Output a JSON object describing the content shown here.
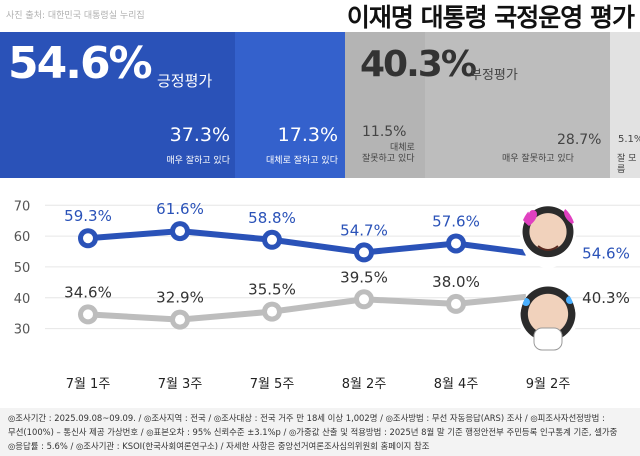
{
  "header": {
    "credit": "사진 출처: 대한민국 대통령실 누리집",
    "title": "이재명 대통령 국정운영 평가"
  },
  "summary": {
    "positive": {
      "value": "54.6%",
      "label": "긍정평가"
    },
    "negative": {
      "value": "40.3%",
      "label": "부정평가"
    },
    "breakdown": [
      {
        "value": "37.3%",
        "label": "매우 잘하고 있다"
      },
      {
        "value": "17.3%",
        "label": "대체로 잘하고 있다"
      },
      {
        "value": "11.5%",
        "label_line1": "대체로",
        "label_line2": "잘못하고 있다"
      },
      {
        "value": "28.7%",
        "label": "매우 잘못하고 있다"
      },
      {
        "value": "5.1%",
        "label": "잘 모름"
      }
    ]
  },
  "colors": {
    "positive": "#2a52b8",
    "positive_light": "#3461cc",
    "negative_line": "#bdbdbd",
    "negative_band": "#b4b4b4"
  },
  "chart_data": {
    "type": "line",
    "categories": [
      "7월 1주",
      "7월 3주",
      "7월 5주",
      "8월 2주",
      "8월 4주",
      "9월 2주"
    ],
    "series": [
      {
        "name": "긍정평가",
        "values": [
          59.3,
          61.6,
          58.8,
          54.7,
          57.6,
          54.6
        ],
        "labels": [
          "59.3%",
          "61.6%",
          "58.8%",
          "54.7%",
          "57.6%",
          "54.6%"
        ]
      },
      {
        "name": "부정평가",
        "values": [
          34.6,
          32.9,
          35.5,
          39.5,
          38.0,
          40.3
        ],
        "labels": [
          "34.6%",
          "32.9%",
          "35.5%",
          "39.5%",
          "38.0%",
          "40.3%"
        ]
      }
    ],
    "yticks": [
      "30",
      "40",
      "50",
      "60",
      "70"
    ],
    "ylim": [
      25,
      73
    ],
    "grid": true
  },
  "footer": {
    "line1": "◎조사기간 : 2025.09.08~09.09. / ◎조사지역 : 전국 / ◎조사대상 : 전국 거주 만 18세 이상 1,002명 / ◎조사방법 : 무선 자동응답(ARS) 조사 / ◎피조사자선정방법 :",
    "line2": "무선(100%) – 통신사 제공 가상번호 / ◎표본오차 : 95% 신뢰수준 ±3.1%p / ◎가중값 산출 및 적용방법 : 2025년 8월 말 기준 행정안전부 주민등록 인구통계 기준, 셀가중",
    "line3": "◎응답률 : 5.6% / ◎조사기관 : KSOI(한국사회여론연구소) / 자세한 사항은 중앙선거여론조사심의위원회 홈페이지 참조"
  }
}
